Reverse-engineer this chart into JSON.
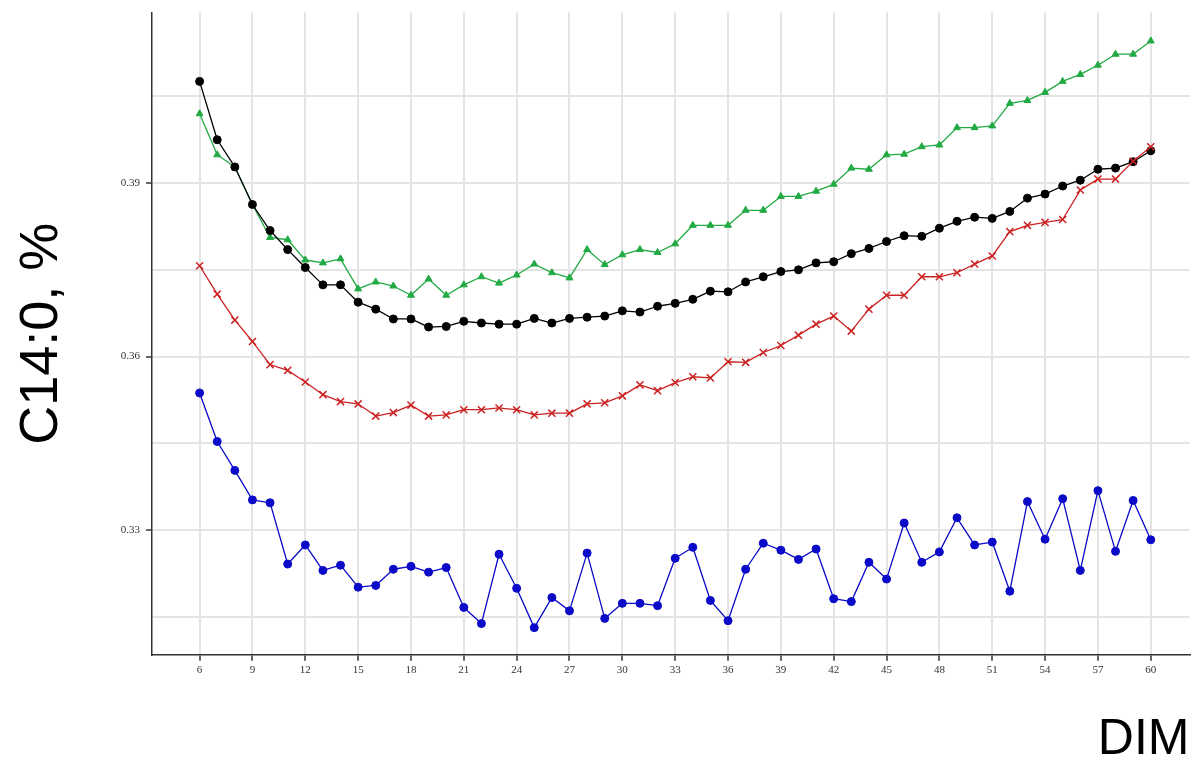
{
  "chart_data": {
    "type": "line",
    "xlabel": "DIM",
    "ylabel": "C14:0, %",
    "x": [
      6,
      7,
      8,
      9,
      10,
      11,
      12,
      13,
      14,
      15,
      16,
      17,
      18,
      19,
      20,
      21,
      22,
      23,
      24,
      25,
      26,
      27,
      28,
      29,
      30,
      31,
      32,
      33,
      34,
      35,
      36,
      37,
      38,
      39,
      40,
      41,
      42,
      43,
      44,
      45,
      46,
      47,
      48,
      49,
      50,
      51,
      52,
      53,
      54,
      55,
      56,
      57,
      58,
      59,
      60
    ],
    "xlim": [
      3.3,
      62.2
    ],
    "xticks": [
      6,
      9,
      12,
      15,
      18,
      21,
      24,
      27,
      30,
      33,
      36,
      39,
      42,
      45,
      48,
      51,
      54,
      57,
      60
    ],
    "ylim": [
      0.3084,
      0.4195
    ],
    "yticks": [
      {
        "value": 0.315,
        "label": null
      },
      0.33,
      {
        "value": 0.345,
        "label": null
      },
      0.36,
      {
        "value": 0.375,
        "label": null
      },
      0.39,
      {
        "value": 0.405,
        "label": null
      }
    ],
    "grid": true,
    "legend": false,
    "line_style": "solid",
    "series": [
      {
        "color": "#0a0ac8",
        "marker": "circle",
        "values": [
          0.3537,
          0.3453,
          0.3403,
          0.3352,
          0.3347,
          0.3241,
          0.3274,
          0.323,
          0.3239,
          0.3201,
          0.3204,
          0.3232,
          0.3237,
          0.3227,
          0.3235,
          0.3166,
          0.3138,
          0.3258,
          0.3199,
          0.3131,
          0.3183,
          0.316,
          0.326,
          0.3147,
          0.3173,
          0.3173,
          0.3169,
          0.3251,
          0.327,
          0.3178,
          0.3143,
          0.3232,
          0.3277,
          0.3265,
          0.3249,
          0.3267,
          0.3181,
          0.3176,
          0.3244,
          0.3215,
          0.3312,
          0.3244,
          0.3262,
          0.3321,
          0.3274,
          0.3279,
          0.3194,
          0.3349,
          0.3284,
          0.3354,
          0.323,
          0.3368,
          0.3263,
          0.3351,
          0.3283
        ]
      },
      {
        "color": "#cc2222",
        "marker": "cross",
        "values": [
          0.3757,
          0.3708,
          0.3663,
          0.3626,
          0.3586,
          0.3576,
          0.3556,
          0.3534,
          0.3522,
          0.3518,
          0.3497,
          0.3503,
          0.3516,
          0.3497,
          0.3499,
          0.3508,
          0.3508,
          0.3511,
          0.3508,
          0.3499,
          0.3502,
          0.3502,
          0.3518,
          0.352,
          0.3532,
          0.3551,
          0.3541,
          0.3555,
          0.3565,
          0.3563,
          0.3591,
          0.359,
          0.3607,
          0.3619,
          0.3637,
          0.3656,
          0.367,
          0.3644,
          0.3682,
          0.3706,
          0.3706,
          0.3738,
          0.3738,
          0.3745,
          0.376,
          0.3774,
          0.3816,
          0.3827,
          0.3832,
          0.3837,
          0.3888,
          0.3907,
          0.3907,
          0.3938,
          0.3963
        ]
      },
      {
        "color": "#000000",
        "marker": "circle",
        "values": [
          0.4076,
          0.3975,
          0.3928,
          0.3863,
          0.3818,
          0.3785,
          0.3754,
          0.3724,
          0.3724,
          0.3694,
          0.3682,
          0.3665,
          0.3665,
          0.3651,
          0.3652,
          0.3661,
          0.3658,
          0.3656,
          0.3656,
          0.3666,
          0.3658,
          0.3666,
          0.3668,
          0.367,
          0.3679,
          0.3677,
          0.3687,
          0.3692,
          0.3699,
          0.3713,
          0.3712,
          0.3729,
          0.3738,
          0.3747,
          0.375,
          0.3762,
          0.3764,
          0.3778,
          0.3787,
          0.3799,
          0.3809,
          0.3808,
          0.3822,
          0.3834,
          0.3841,
          0.3839,
          0.3851,
          0.3874,
          0.3881,
          0.3895,
          0.3905,
          0.3924,
          0.3926,
          0.3937,
          0.3956
        ]
      },
      {
        "color": "#22aa44",
        "marker": "triangle",
        "values": [
          0.402,
          0.3949,
          0.3928,
          0.3863,
          0.3806,
          0.3802,
          0.3767,
          0.3762,
          0.3769,
          0.3717,
          0.3729,
          0.3722,
          0.3706,
          0.3734,
          0.3706,
          0.3724,
          0.3738,
          0.3727,
          0.3741,
          0.376,
          0.3745,
          0.3736,
          0.3785,
          0.3759,
          0.3776,
          0.3785,
          0.378,
          0.3795,
          0.3827,
          0.3827,
          0.3827,
          0.3853,
          0.3853,
          0.3877,
          0.3877,
          0.3886,
          0.3898,
          0.3926,
          0.3924,
          0.3949,
          0.395,
          0.3963,
          0.3966,
          0.3996,
          0.3996,
          0.3999,
          0.4038,
          0.4043,
          0.4057,
          0.4076,
          0.4088,
          0.4104,
          0.4123,
          0.4123,
          0.4146
        ]
      }
    ]
  }
}
